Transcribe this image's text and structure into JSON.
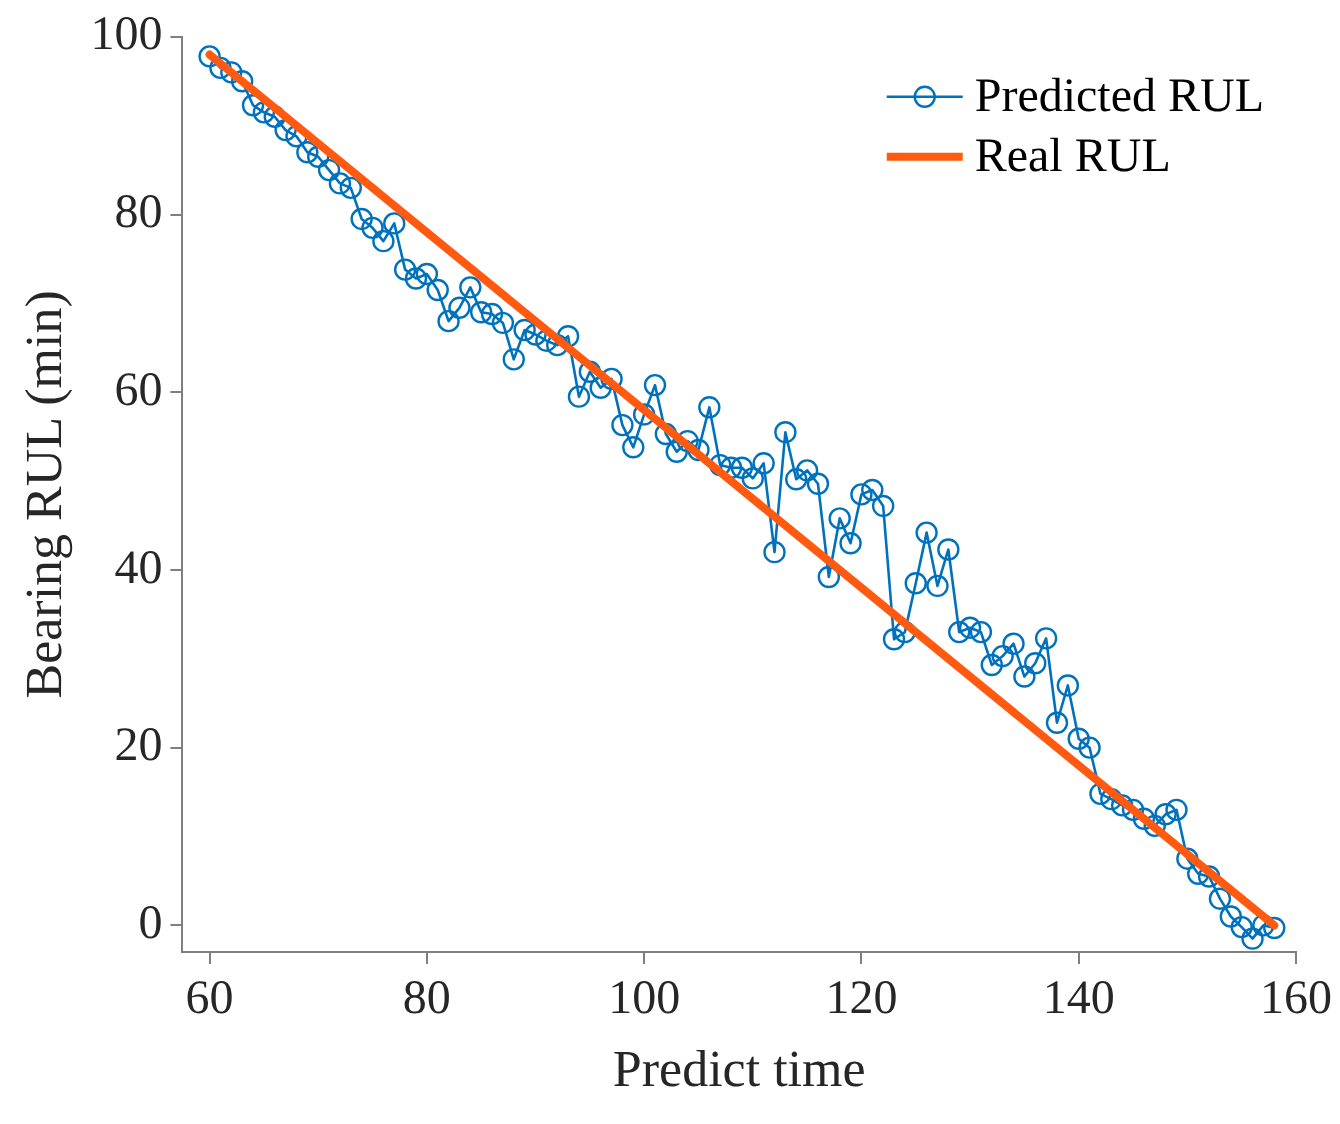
{
  "chart_data": {
    "type": "line",
    "xlabel": "Predict time",
    "ylabel": "Bearing RUL (min)",
    "xlim": [
      57.5,
      160
    ],
    "xticks": [
      60,
      80,
      100,
      120,
      140,
      160
    ],
    "ylim": [
      -3,
      100
    ],
    "yticks": [
      0,
      20,
      40,
      60,
      80,
      100
    ],
    "grid": false,
    "legend": "top right",
    "line_style": "solid",
    "series": [
      {
        "name": "Predicted RUL",
        "color": "#0072bd",
        "marker": "circle",
        "x": [
          60,
          61,
          62,
          63,
          64,
          65,
          66,
          67,
          68,
          69,
          70,
          71,
          72,
          73,
          74,
          75,
          76,
          77,
          78,
          79,
          80,
          81,
          82,
          83,
          84,
          85,
          86,
          87,
          88,
          89,
          90,
          91,
          92,
          93,
          94,
          95,
          96,
          97,
          98,
          99,
          100,
          101,
          102,
          103,
          104,
          105,
          106,
          107,
          108,
          109,
          110,
          111,
          112,
          113,
          114,
          115,
          116,
          117,
          118,
          119,
          120,
          121,
          122,
          123,
          124,
          125,
          126,
          127,
          128,
          129,
          130,
          131,
          132,
          133,
          134,
          135,
          136,
          137,
          138,
          139,
          140,
          141,
          142,
          143,
          144,
          145,
          146,
          147,
          148,
          149,
          150,
          151,
          152,
          153,
          154,
          155,
          156,
          157,
          158
        ],
        "values": [
          97.8,
          96.5,
          96,
          95,
          92.3,
          91.5,
          91,
          89.5,
          88.8,
          87,
          86.5,
          85,
          83.5,
          83,
          79.5,
          78.5,
          77,
          79,
          73.8,
          72.8,
          73.3,
          71.5,
          68,
          69.5,
          71.8,
          69,
          68.8,
          67.8,
          63.7,
          67,
          66.5,
          65.8,
          65.3,
          66.3,
          59.5,
          62.3,
          60.5,
          61.5,
          56.3,
          53.8,
          57.5,
          60.8,
          55.3,
          53.3,
          54.5,
          53.5,
          58.3,
          51.8,
          51.5,
          51.5,
          50.3,
          52,
          42,
          55.5,
          50.2,
          51.2,
          49.7,
          39.2,
          45.8,
          43,
          48.5,
          49,
          47.2,
          32.2,
          33,
          38.5,
          44.2,
          38.2,
          42.3,
          33,
          33.5,
          33,
          29.3,
          30.3,
          31.7,
          28,
          29.5,
          32.3,
          22.8,
          27,
          21,
          20,
          14.8,
          14.2,
          13.5,
          13,
          12,
          11.2,
          12.5,
          13,
          7.5,
          5.8,
          5.5,
          3,
          1,
          -0.2,
          -1.5,
          0,
          -0.3
        ]
      },
      {
        "name": "Real RUL",
        "color": "#ff5a0f",
        "marker": "none",
        "x": [
          60,
          158
        ],
        "values": [
          98,
          0
        ]
      }
    ]
  }
}
